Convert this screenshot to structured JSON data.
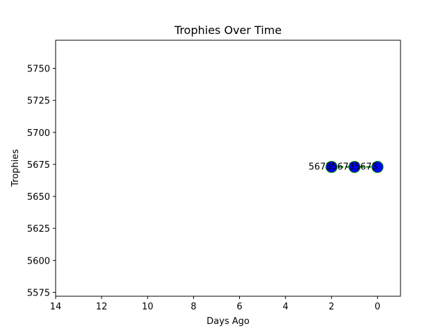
{
  "chart_data": {
    "type": "line",
    "title": "Trophies Over Time",
    "xlabel": "Days Ago",
    "ylabel": "Trophies",
    "x_inverted": true,
    "xlim": [
      14,
      -1
    ],
    "ylim": [
      5572,
      5772
    ],
    "x_ticks": [
      14,
      12,
      10,
      8,
      6,
      4,
      2,
      0
    ],
    "y_ticks": [
      5575,
      5600,
      5625,
      5650,
      5675,
      5700,
      5725,
      5750
    ],
    "grid": false,
    "series": [
      {
        "x": [
          2,
          1,
          0
        ],
        "y": [
          5673,
          5673,
          5673
        ],
        "point_labels": [
          "5673",
          "5673",
          "5673"
        ],
        "line_color": "#008000",
        "marker_color": "#0000ff",
        "marker_edge_color": "#008000"
      }
    ]
  }
}
